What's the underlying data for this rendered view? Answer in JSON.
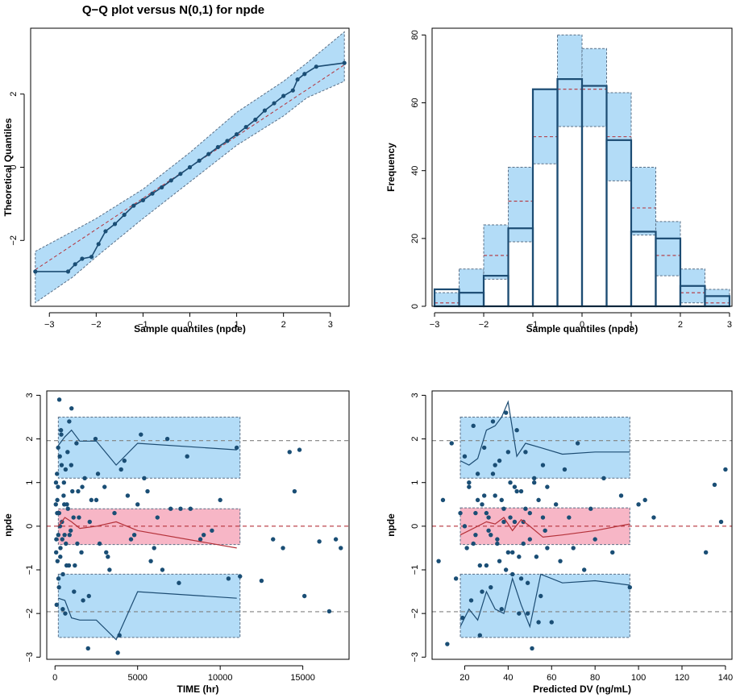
{
  "colors": {
    "band_blue": "#b3dcf7",
    "band_pink": "#f7b6c6",
    "band_edge": "#5a6f86",
    "navy": "#1c4c73",
    "point": "#1a4e75",
    "red": "#b5323a",
    "grey_ref": "#808080"
  },
  "chart_data": [
    {
      "id": "qq",
      "type": "scatter",
      "title": "Q−Q plot versus N(0,1) for  npde",
      "xlabel": "Sample quantiles (npde)",
      "ylabel": "Theoretical Quantiles",
      "xlim": [
        -3.4,
        3.4
      ],
      "ylim": [
        -3.8,
        3.8
      ],
      "xticks": [
        -3,
        -2,
        -1,
        0,
        1,
        2,
        3
      ],
      "yticks": [
        -2,
        0,
        2
      ],
      "xtick_labels": [
        "−3",
        "−2",
        "−1",
        "0",
        "1",
        "2",
        "3"
      ],
      "ytick_labels": [
        "−2",
        "0",
        "2"
      ],
      "band_x": [
        -3.3,
        -2.5,
        -2.0,
        -1.0,
        0.0,
        1.0,
        2.0,
        2.5,
        3.3
      ],
      "band_upper": [
        -2.3,
        -1.75,
        -1.4,
        -0.6,
        0.4,
        1.5,
        2.35,
        2.85,
        3.7
      ],
      "band_lower": [
        -3.7,
        -3.0,
        -2.45,
        -1.4,
        -0.4,
        0.6,
        1.4,
        1.9,
        2.35
      ],
      "reference_x": [
        -3.3,
        3.3
      ],
      "reference_y": [
        -2.8,
        2.8
      ],
      "points_x": [
        -3.3,
        -2.6,
        -2.45,
        -2.3,
        -2.1,
        -1.95,
        -1.8,
        -1.6,
        -1.4,
        -1.2,
        -1.0,
        -0.8,
        -0.6,
        -0.4,
        -0.2,
        0.0,
        0.2,
        0.4,
        0.6,
        0.8,
        1.0,
        1.2,
        1.4,
        1.6,
        1.8,
        2.0,
        2.2,
        2.3,
        2.45,
        2.7,
        3.3
      ],
      "points_y": [
        -2.85,
        -2.85,
        -2.65,
        -2.5,
        -2.45,
        -2.1,
        -1.75,
        -1.55,
        -1.3,
        -1.05,
        -0.9,
        -0.72,
        -0.55,
        -0.36,
        -0.18,
        0.0,
        0.18,
        0.36,
        0.55,
        0.72,
        0.9,
        1.1,
        1.3,
        1.55,
        1.75,
        1.95,
        2.1,
        2.4,
        2.55,
        2.75,
        2.85
      ]
    },
    {
      "id": "hist",
      "type": "bar",
      "xlabel": "Sample quantiles (npde)",
      "ylabel": "Frequency",
      "xlim": [
        -3.05,
        3.05
      ],
      "ylim": [
        0,
        82
      ],
      "xticks": [
        -3,
        -2,
        -1,
        0,
        1,
        2,
        3
      ],
      "yticks": [
        0,
        20,
        40,
        60,
        80
      ],
      "xtick_labels": [
        "−3",
        "−2",
        "−1",
        "0",
        "1",
        "2",
        "3"
      ],
      "ytick_labels": [
        "0",
        "20",
        "40",
        "60",
        "80"
      ],
      "bin_edges": [
        -3.0,
        -2.5,
        -2.0,
        -1.5,
        -1.0,
        -0.5,
        0.0,
        0.5,
        1.0,
        1.5,
        2.0,
        2.5,
        3.0
      ],
      "observed": [
        5,
        4,
        9,
        23,
        64,
        67,
        65,
        49,
        22,
        20,
        6,
        3
      ],
      "expected": [
        1,
        4,
        15,
        31,
        50,
        64,
        64,
        50,
        29,
        15,
        4,
        1
      ],
      "band_lower": [
        0,
        0,
        8,
        19,
        42,
        53,
        53,
        37,
        21,
        9,
        1,
        0
      ],
      "band_upper": [
        4,
        11,
        24,
        41,
        64,
        80,
        76,
        63,
        41,
        25,
        11,
        5
      ]
    },
    {
      "id": "time",
      "type": "scatter",
      "xlabel": "TIME (hr)",
      "ylabel": "npde",
      "xlim": [
        -500,
        17800
      ],
      "ylim": [
        -3.05,
        3.1
      ],
      "xticks": [
        0,
        5000,
        10000,
        15000
      ],
      "yticks": [
        -3,
        -2,
        -1,
        0,
        1,
        2,
        3
      ],
      "xtick_labels": [
        "0",
        "5000",
        "10000",
        "15000"
      ],
      "ytick_labels": [
        "−3",
        "−2",
        "−1",
        "0",
        "1",
        "2",
        "3"
      ],
      "ref_lines": [
        -1.96,
        0,
        1.96
      ],
      "upper_band": {
        "x": [
          200,
          11200
        ],
        "lo": 1.1,
        "hi": 2.5
      },
      "middle_band": {
        "x": [
          200,
          11200
        ],
        "lo": -0.42,
        "hi": 0.4
      },
      "lower_band": {
        "x": [
          200,
          11200
        ],
        "lo": -2.55,
        "hi": -1.1
      },
      "upper_line": {
        "x": [
          200,
          600,
          1000,
          1500,
          2500,
          3700,
          5000,
          11000
        ],
        "y": [
          1.85,
          2.05,
          2.2,
          1.95,
          1.95,
          1.4,
          1.9,
          1.75
        ]
      },
      "median_line": {
        "x": [
          200,
          600,
          1000,
          1500,
          2500,
          3700,
          5000,
          11000
        ],
        "y": [
          0.0,
          0.2,
          0.1,
          -0.05,
          0.0,
          0.1,
          -0.1,
          -0.5
        ]
      },
      "lower_line": {
        "x": [
          200,
          600,
          1000,
          1500,
          2500,
          3700,
          5000,
          11000
        ],
        "y": [
          -1.65,
          -1.7,
          -2.1,
          -2.15,
          -2.15,
          -2.6,
          -1.5,
          -1.65
        ]
      },
      "points_x": [
        50,
        80,
        120,
        150,
        180,
        210,
        250,
        290,
        330,
        380,
        420,
        470,
        520,
        580,
        640,
        700,
        780,
        860,
        950,
        1050,
        1150,
        1300,
        1450,
        1600,
        1800,
        2000,
        2200,
        2450,
        2700,
        3000,
        3300,
        3600,
        3900,
        4200,
        4600,
        5000,
        5400,
        5800,
        6200,
        6800,
        7500,
        8200,
        9000,
        10000,
        11000,
        60,
        100,
        140,
        200,
        260,
        320,
        400,
        480,
        560,
        660,
        760,
        880,
        1000,
        1200,
        1400,
        1700,
        2100,
        2600,
        3100,
        3800,
        4400,
        5200,
        6000,
        7000,
        8000,
        9500,
        11200,
        70,
        130,
        190,
        240,
        300,
        360,
        440,
        540,
        620,
        720,
        840,
        980,
        1120,
        1350,
        1650,
        2050,
        2500,
        3200,
        4000,
        4800,
        5600,
        6500,
        7600,
        8800,
        10500,
        12500,
        13200,
        13800,
        14200,
        14500,
        14800,
        15100,
        16000,
        16600,
        17000,
        17300
      ],
      "points_y": [
        0.5,
        -0.3,
        1.2,
        -0.8,
        0.9,
        -1.2,
        0.3,
        1.6,
        -0.5,
        2.1,
        0.1,
        -1.9,
        0.7,
        -0.2,
        1.3,
        -0.9,
        0.4,
        2.4,
        -0.1,
        0.8,
        -1.5,
        1.9,
        0.2,
        -0.6,
        1.1,
        -2.8,
        0.6,
        2.0,
        -0.4,
        0.9,
        -1.0,
        0.3,
        -2.5,
        1.5,
        -0.3,
        0.5,
        1.1,
        -0.8,
        0.2,
        2.0,
        -1.3,
        0.4,
        -0.2,
        0.6,
        1.8,
        1.0,
        -1.8,
        0.6,
        -0.2,
        2.9,
        -0.7,
        1.4,
        -1.1,
        0.5,
        -0.4,
        1.7,
        -0.2,
        2.7,
        -0.9,
        0.8,
        -1.7,
        0.1,
        1.2,
        -0.6,
        -2.9,
        0.7,
        2.1,
        -0.5,
        0.4,
        1.6,
        -0.1,
        -1.15,
        -0.6,
        0.3,
        1.8,
        -1.4,
        0.0,
        2.2,
        -0.3,
        1.0,
        -2.0,
        0.5,
        -0.9,
        1.4,
        0.2,
        -0.4,
        0.9,
        -1.6,
        0.6,
        -0.7,
        1.3,
        -0.2,
        0.8,
        -1.0,
        0.4,
        -0.3,
        -1.2,
        -1.25,
        -0.3,
        -0.5,
        1.7,
        0.8,
        1.75,
        -1.6,
        -0.35,
        -1.95,
        -0.3,
        -0.5
      ]
    },
    {
      "id": "pred",
      "type": "scatter",
      "xlabel": "Predicted DV (ng/mL)",
      "ylabel": "npde",
      "xlim": [
        5,
        143
      ],
      "ylim": [
        -3.05,
        3.1
      ],
      "xticks": [
        20,
        40,
        60,
        80,
        100,
        120,
        140
      ],
      "yticks": [
        -3,
        -2,
        -1,
        0,
        1,
        2,
        3
      ],
      "xtick_labels": [
        "20",
        "40",
        "60",
        "80",
        "100",
        "120",
        "140"
      ],
      "ytick_labels": [
        "−3",
        "−2",
        "−1",
        "0",
        "1",
        "2",
        "3"
      ],
      "ref_lines": [
        -1.96,
        0,
        1.96
      ],
      "upper_band": {
        "x": [
          18,
          96
        ],
        "lo": 1.1,
        "hi": 2.5
      },
      "middle_band": {
        "x": [
          18,
          96
        ],
        "lo": -0.42,
        "hi": 0.42
      },
      "lower_band": {
        "x": [
          18,
          96
        ],
        "lo": -2.55,
        "hi": -1.1
      },
      "upper_line": {
        "x": [
          18,
          22,
          26,
          30,
          34,
          37,
          40,
          44,
          48,
          55,
          65,
          80,
          96
        ],
        "y": [
          1.5,
          1.4,
          1.55,
          2.2,
          2.3,
          2.5,
          2.85,
          1.6,
          1.9,
          1.8,
          1.65,
          1.7,
          1.7
        ]
      },
      "median_line": {
        "x": [
          18,
          22,
          26,
          30,
          34,
          38,
          42,
          46,
          50,
          56,
          65,
          80,
          96
        ],
        "y": [
          -0.2,
          -0.1,
          0.0,
          0.1,
          0.05,
          0.2,
          -0.1,
          0.15,
          0.0,
          -0.25,
          -0.2,
          -0.1,
          0.05
        ]
      },
      "lower_line": {
        "x": [
          18,
          22,
          26,
          30,
          34,
          38,
          42,
          46,
          50,
          55,
          65,
          80,
          96
        ],
        "y": [
          -2.3,
          -1.9,
          -2.15,
          -1.5,
          -1.9,
          -2.0,
          -1.2,
          -1.8,
          -2.3,
          -1.1,
          -1.3,
          -1.25,
          -1.35
        ]
      },
      "points_x": [
        8,
        10,
        12,
        14,
        16,
        18,
        19,
        20,
        21,
        22,
        23,
        24,
        25,
        26,
        27,
        28,
        29,
        30,
        31,
        32,
        33,
        34,
        35,
        36,
        37,
        38,
        39,
        40,
        41,
        42,
        43,
        44,
        45,
        46,
        47,
        48,
        49,
        50,
        51,
        52,
        53,
        54,
        55,
        56,
        57,
        58,
        60,
        62,
        64,
        66,
        68,
        70,
        72,
        75,
        78,
        80,
        84,
        88,
        92,
        96,
        100,
        103,
        107,
        131,
        135,
        138,
        140,
        20,
        22,
        24,
        26,
        28,
        30,
        32,
        34,
        36,
        38,
        40,
        42,
        44,
        46,
        48,
        50,
        52,
        54,
        56,
        58,
        25,
        27,
        29,
        31,
        33,
        35,
        37,
        39,
        41,
        43,
        45,
        47,
        49
      ],
      "points_y": [
        -0.8,
        0.6,
        -2.7,
        1.9,
        -1.2,
        0.3,
        -2.1,
        1.6,
        -0.5,
        0.9,
        -1.7,
        2.3,
        -0.2,
        1.2,
        -2.5,
        0.5,
        1.8,
        -0.9,
        0.2,
        -1.4,
        2.4,
        0.7,
        -0.3,
        1.5,
        -1.9,
        0.4,
        2.6,
        -0.6,
        1.0,
        -1.1,
        0.1,
        2.2,
        -2.0,
        0.8,
        -0.4,
        1.7,
        -1.3,
        0.3,
        -2.8,
        1.1,
        -0.7,
        0.6,
        -1.6,
        1.4,
        -0.1,
        0.9,
        -2.2,
        0.5,
        -0.8,
        1.3,
        0.2,
        -0.5,
        1.9,
        -1.0,
        0.4,
        -0.3,
        1.1,
        -0.6,
        0.7,
        -1.4,
        0.5,
        0.6,
        0.2,
        -0.6,
        0.95,
        0.1,
        1.3,
        0.0,
        1.0,
        -0.4,
        0.6,
        -1.5,
        0.3,
        -0.2,
        1.4,
        -0.8,
        0.1,
        1.7,
        -0.6,
        0.8,
        -1.2,
        0.4,
        -0.3,
        1.0,
        -2.2,
        0.2,
        -0.5,
        0.3,
        -0.9,
        0.7,
        -0.1,
        1.2,
        -0.4,
        0.6,
        -1.0,
        0.2,
        0.9,
        -0.7,
        0.1,
        -2.0
      ]
    }
  ]
}
